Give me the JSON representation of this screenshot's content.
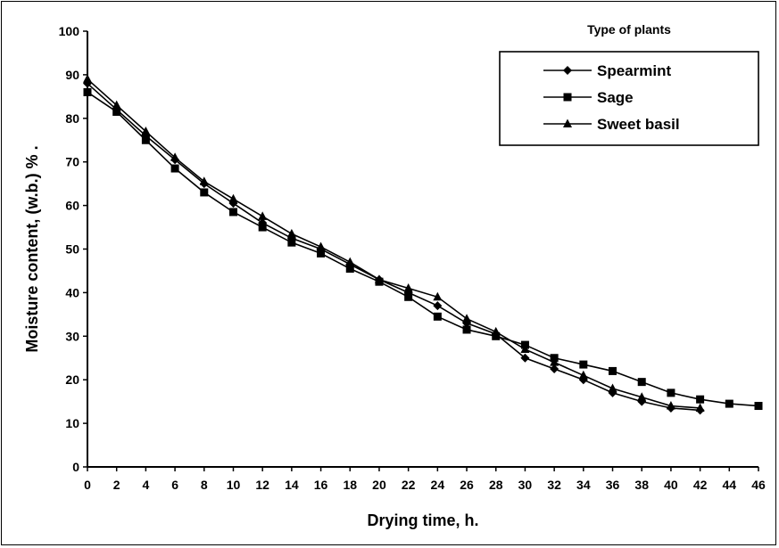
{
  "chart_data": {
    "type": "line",
    "title": "",
    "xlabel": "Drying time, h.",
    "ylabel": "Moisture content, (w.b.) % .",
    "legend_title": "Type of plants",
    "legend_position": "top-right",
    "grid": false,
    "xlim": [
      0,
      46
    ],
    "ylim": [
      0,
      100
    ],
    "x_ticks": [
      "0",
      "2",
      "4",
      "6",
      "8",
      "10",
      "12",
      "14",
      "16",
      "18",
      "20",
      "22",
      "24",
      "26",
      "28",
      "30",
      "32",
      "34",
      "36",
      "38",
      "40",
      "42",
      "44",
      "46"
    ],
    "y_ticks": [
      "0",
      "10",
      "20",
      "30",
      "40",
      "50",
      "60",
      "70",
      "80",
      "90",
      "100"
    ],
    "series": [
      {
        "name": "Spearmint",
        "marker": "diamond",
        "x": [
          0,
          2,
          4,
          6,
          8,
          10,
          12,
          14,
          16,
          18,
          20,
          22,
          24,
          26,
          28,
          30,
          32,
          34,
          36,
          38,
          40,
          42
        ],
        "y": [
          88,
          82,
          76,
          70.5,
          65,
          60.5,
          56,
          52.5,
          50,
          46.5,
          43,
          40,
          37,
          33,
          30.5,
          25,
          22.5,
          20,
          17,
          15,
          13.5,
          13
        ]
      },
      {
        "name": "Sage",
        "marker": "square",
        "x": [
          0,
          2,
          4,
          6,
          8,
          10,
          12,
          14,
          16,
          18,
          20,
          22,
          24,
          26,
          28,
          30,
          32,
          34,
          36,
          38,
          40,
          42,
          44,
          46
        ],
        "y": [
          86,
          81.5,
          75,
          68.5,
          63,
          58.5,
          55,
          51.5,
          49,
          45.5,
          42.5,
          39,
          34.5,
          31.5,
          30,
          28,
          25,
          23.5,
          22,
          19.5,
          17,
          15.5,
          14.5,
          14
        ]
      },
      {
        "name": "Sweet basil",
        "marker": "triangle",
        "x": [
          0,
          2,
          4,
          6,
          8,
          10,
          12,
          14,
          16,
          18,
          20,
          22,
          24,
          26,
          28,
          30,
          32,
          34,
          36,
          38,
          40,
          42
        ],
        "y": [
          89,
          83,
          77,
          71,
          65.5,
          61.5,
          57.5,
          53.5,
          50.5,
          47,
          43,
          41,
          39,
          34,
          31,
          27,
          24,
          21,
          18,
          16,
          14,
          13.5
        ]
      }
    ]
  }
}
